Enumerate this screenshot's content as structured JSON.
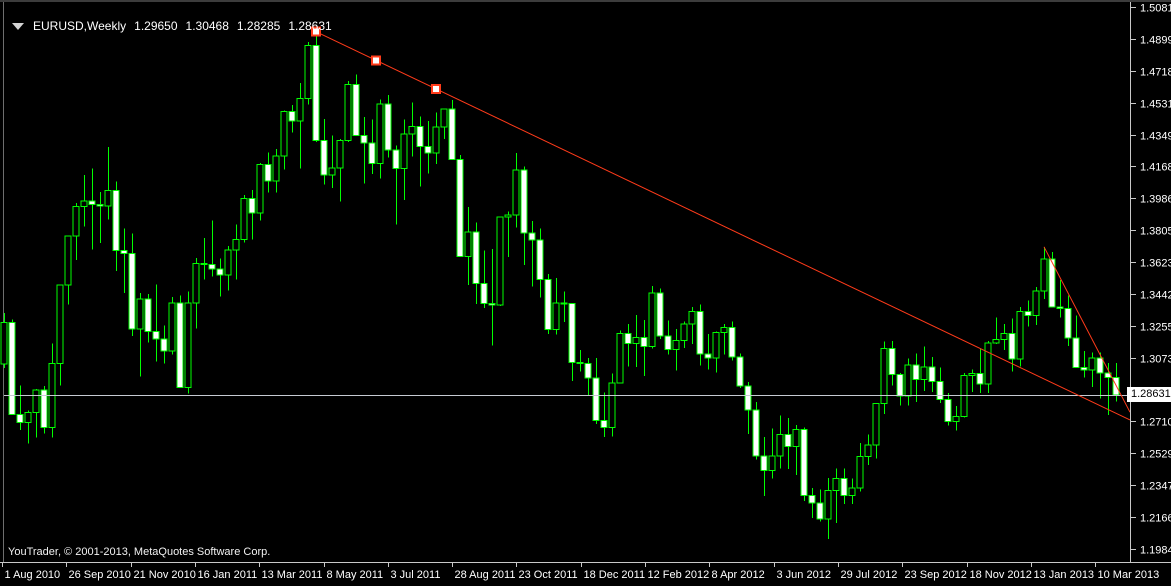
{
  "window": {
    "menu_icon": "chart-menu-arrow",
    "symbol_timeframe": "EURUSD,Weekly",
    "ohlc": {
      "open": "1.29650",
      "high": "1.30468",
      "low": "1.28285",
      "close": "1.28631"
    }
  },
  "footer": {
    "credit": "YouTrader, © 2001-2013, MetaQuotes Software Corp."
  },
  "colors": {
    "background": "#000000",
    "candle_outline": "#00ff00",
    "bull_fill": "#000000",
    "bear_fill": "#ffffff",
    "trendline": "#ff3b1a",
    "anchor_fill": "#ffffff",
    "current_price_line": "#c6cad2",
    "axis_line": "#c8c8c8",
    "axis_text": "#ffffff",
    "price_box_bg": "#ffffff",
    "price_box_text": "#000000"
  },
  "chart_data": {
    "type": "candlestick",
    "title": "EURUSD,Weekly",
    "symbol": "EURUSD",
    "timeframe": "Weekly",
    "grid": false,
    "legend_position": "none",
    "ylim": [
      1.19845,
      1.5081
    ],
    "x_labels": [
      "1 Aug 2010",
      "26 Sep 2010",
      "21 Nov 2010",
      "16 Jan 2011",
      "13 Mar 2011",
      "8 May 2011",
      "3 Jul 2011",
      "28 Aug 2011",
      "23 Oct 2011",
      "18 Dec 2011",
      "12 Feb 2012",
      "8 Apr 2012",
      "3 Jun 2012",
      "29 Jul 2012",
      "23 Sep 2012",
      "18 Nov 2012",
      "13 Jan 2013",
      "10 Mar 2013"
    ],
    "y_labels": [
      "1.50810",
      "1.48995",
      "1.47180",
      "1.45310",
      "1.43495",
      "1.41680",
      "1.39865",
      "1.38050",
      "1.36235",
      "1.34420",
      "1.32550",
      "1.30735",
      "1.28920",
      "1.27105",
      "1.25290",
      "1.23475",
      "1.21660",
      "1.19845"
    ],
    "current_price_label": "1.28631",
    "current_price": 1.28631,
    "horizontal_line_price": 1.28631,
    "first_week": "1 Aug 2010",
    "candles_ohlc": [
      [
        1.3042,
        1.3334,
        1.3018,
        1.3278
      ],
      [
        1.3278,
        1.3296,
        1.2753,
        1.2754
      ],
      [
        1.2754,
        1.2918,
        1.2664,
        1.2708
      ],
      [
        1.2708,
        1.2775,
        1.2588,
        1.2764
      ],
      [
        1.2764,
        1.2898,
        1.2622,
        1.2894
      ],
      [
        1.2894,
        1.2916,
        1.2643,
        1.2679
      ],
      [
        1.2679,
        1.3159,
        1.2621,
        1.3044
      ],
      [
        1.3044,
        1.3497,
        1.292,
        1.3492
      ],
      [
        1.3492,
        1.3774,
        1.338,
        1.3772
      ],
      [
        1.3772,
        1.396,
        1.3637,
        1.394
      ],
      [
        1.394,
        1.4122,
        1.3827,
        1.3972
      ],
      [
        1.3972,
        1.4159,
        1.3696,
        1.3952
      ],
      [
        1.3952,
        1.4023,
        1.3732,
        1.3945
      ],
      [
        1.3945,
        1.4282,
        1.3866,
        1.4033
      ],
      [
        1.4033,
        1.4085,
        1.3574,
        1.3691
      ],
      [
        1.3691,
        1.3815,
        1.3446,
        1.3673
      ],
      [
        1.3673,
        1.3786,
        1.32,
        1.3242
      ],
      [
        1.3242,
        1.3447,
        1.2969,
        1.3413
      ],
      [
        1.3413,
        1.344,
        1.3165,
        1.3228
      ],
      [
        1.3228,
        1.3497,
        1.3055,
        1.3183
      ],
      [
        1.3183,
        1.3262,
        1.3045,
        1.3115
      ],
      [
        1.3115,
        1.3425,
        1.3096,
        1.3391
      ],
      [
        1.3391,
        1.3434,
        1.2907,
        1.2907
      ],
      [
        1.2907,
        1.3457,
        1.2873,
        1.3389
      ],
      [
        1.3389,
        1.3648,
        1.3243,
        1.3617
      ],
      [
        1.3617,
        1.376,
        1.3525,
        1.3611
      ],
      [
        1.3611,
        1.3862,
        1.3542,
        1.3583
      ],
      [
        1.3583,
        1.3643,
        1.3428,
        1.3549
      ],
      [
        1.3549,
        1.3715,
        1.3461,
        1.3694
      ],
      [
        1.3694,
        1.3838,
        1.3525,
        1.3754
      ],
      [
        1.3754,
        1.4007,
        1.3736,
        1.3986
      ],
      [
        1.3986,
        1.4036,
        1.3752,
        1.3903
      ],
      [
        1.3903,
        1.419,
        1.386,
        1.4181
      ],
      [
        1.4181,
        1.4249,
        1.4021,
        1.4088
      ],
      [
        1.4088,
        1.4269,
        1.402,
        1.4229
      ],
      [
        1.4229,
        1.4489,
        1.4153,
        1.4483
      ],
      [
        1.4483,
        1.4521,
        1.4365,
        1.4429
      ],
      [
        1.4429,
        1.4648,
        1.4157,
        1.4557
      ],
      [
        1.4557,
        1.4882,
        1.4524,
        1.486
      ],
      [
        1.486,
        1.494,
        1.4311,
        1.4317
      ],
      [
        1.4317,
        1.4442,
        1.4066,
        1.412
      ],
      [
        1.412,
        1.4346,
        1.4048,
        1.416
      ],
      [
        1.416,
        1.4326,
        1.397,
        1.4319
      ],
      [
        1.4319,
        1.4658,
        1.431,
        1.4637
      ],
      [
        1.4637,
        1.4696,
        1.4428,
        1.4346
      ],
      [
        1.4346,
        1.4452,
        1.4073,
        1.4305
      ],
      [
        1.4305,
        1.4437,
        1.4126,
        1.4187
      ],
      [
        1.4187,
        1.4552,
        1.4101,
        1.4527
      ],
      [
        1.4527,
        1.4578,
        1.422,
        1.4265
      ],
      [
        1.4265,
        1.4289,
        1.3837,
        1.4157
      ],
      [
        1.4157,
        1.4438,
        1.3979,
        1.4356
      ],
      [
        1.4356,
        1.4536,
        1.4227,
        1.4398
      ],
      [
        1.4398,
        1.4454,
        1.4055,
        1.4283
      ],
      [
        1.4283,
        1.4431,
        1.413,
        1.4246
      ],
      [
        1.4246,
        1.4477,
        1.4184,
        1.4396
      ],
      [
        1.4396,
        1.45,
        1.4328,
        1.4499
      ],
      [
        1.4499,
        1.4549,
        1.4207,
        1.4209
      ],
      [
        1.4209,
        1.4236,
        1.3654,
        1.3656
      ],
      [
        1.3656,
        1.3937,
        1.3494,
        1.3795
      ],
      [
        1.3795,
        1.3851,
        1.3384,
        1.35
      ],
      [
        1.35,
        1.369,
        1.3361,
        1.3387
      ],
      [
        1.3387,
        1.3699,
        1.3146,
        1.3379
      ],
      [
        1.3379,
        1.3834,
        1.3372,
        1.388
      ],
      [
        1.388,
        1.3914,
        1.3653,
        1.3894
      ],
      [
        1.3894,
        1.4247,
        1.3822,
        1.415
      ],
      [
        1.415,
        1.417,
        1.3606,
        1.379
      ],
      [
        1.379,
        1.3859,
        1.3483,
        1.375
      ],
      [
        1.375,
        1.3815,
        1.3421,
        1.3524
      ],
      [
        1.3524,
        1.3556,
        1.3212,
        1.3239
      ],
      [
        1.3239,
        1.3533,
        1.3211,
        1.3391
      ],
      [
        1.3391,
        1.3457,
        1.3281,
        1.3386
      ],
      [
        1.3386,
        1.3388,
        1.2945,
        1.3049
      ],
      [
        1.3049,
        1.3121,
        1.2999,
        1.3043
      ],
      [
        1.3043,
        1.3077,
        1.2858,
        1.2961
      ],
      [
        1.2961,
        1.3077,
        1.2698,
        1.2718
      ],
      [
        1.2718,
        1.2879,
        1.2624,
        1.268
      ],
      [
        1.268,
        1.2986,
        1.2626,
        1.2933
      ],
      [
        1.2933,
        1.3234,
        1.293,
        1.3216
      ],
      [
        1.3216,
        1.327,
        1.3026,
        1.3158
      ],
      [
        1.3158,
        1.3322,
        1.3025,
        1.3193
      ],
      [
        1.3193,
        1.3293,
        1.2974,
        1.3141
      ],
      [
        1.3141,
        1.3486,
        1.3129,
        1.3448
      ],
      [
        1.3448,
        1.3473,
        1.3185,
        1.32
      ],
      [
        1.32,
        1.329,
        1.3095,
        1.3123
      ],
      [
        1.3123,
        1.324,
        1.3003,
        1.3175
      ],
      [
        1.3175,
        1.3285,
        1.3133,
        1.327
      ],
      [
        1.327,
        1.3368,
        1.3157,
        1.334
      ],
      [
        1.334,
        1.338,
        1.3034,
        1.3098
      ],
      [
        1.3098,
        1.3213,
        1.301,
        1.3076
      ],
      [
        1.3076,
        1.3226,
        1.2994,
        1.3221
      ],
      [
        1.3221,
        1.327,
        1.3095,
        1.325
      ],
      [
        1.325,
        1.3283,
        1.3061,
        1.3082
      ],
      [
        1.3082,
        1.3102,
        1.2904,
        1.2917
      ],
      [
        1.2917,
        1.294,
        1.2642,
        1.278
      ],
      [
        1.278,
        1.2825,
        1.2495,
        1.2517
      ],
      [
        1.2517,
        1.2625,
        1.2288,
        1.2434
      ],
      [
        1.2434,
        1.2672,
        1.2386,
        1.2516
      ],
      [
        1.2516,
        1.2748,
        1.2443,
        1.2638
      ],
      [
        1.2638,
        1.2733,
        1.2441,
        1.257
      ],
      [
        1.257,
        1.2693,
        1.2407,
        1.2667
      ],
      [
        1.2667,
        1.2678,
        1.226,
        1.2291
      ],
      [
        1.2291,
        1.2333,
        1.2162,
        1.2248
      ],
      [
        1.2248,
        1.2324,
        1.2143,
        1.2157
      ],
      [
        1.2157,
        1.239,
        1.2042,
        1.232
      ],
      [
        1.232,
        1.2444,
        1.2133,
        1.2386
      ],
      [
        1.2386,
        1.2444,
        1.2241,
        1.229
      ],
      [
        1.229,
        1.2386,
        1.2241,
        1.2333
      ],
      [
        1.2333,
        1.259,
        1.2313,
        1.2512
      ],
      [
        1.2512,
        1.2638,
        1.2465,
        1.2578
      ],
      [
        1.2578,
        1.2815,
        1.2501,
        1.2815
      ],
      [
        1.2815,
        1.3169,
        1.2755,
        1.313
      ],
      [
        1.313,
        1.3172,
        1.2919,
        1.2982
      ],
      [
        1.2982,
        1.2991,
        1.2803,
        1.286
      ],
      [
        1.286,
        1.3072,
        1.2804,
        1.3035
      ],
      [
        1.3035,
        1.31,
        1.2825,
        1.2953
      ],
      [
        1.2953,
        1.314,
        1.2887,
        1.3023
      ],
      [
        1.3023,
        1.3081,
        1.2882,
        1.2941
      ],
      [
        1.2941,
        1.3021,
        1.282,
        1.2838
      ],
      [
        1.2838,
        1.2876,
        1.269,
        1.2714
      ],
      [
        1.2714,
        1.2801,
        1.2661,
        1.2741
      ],
      [
        1.2741,
        1.2991,
        1.2736,
        1.2975
      ],
      [
        1.2975,
        1.301,
        1.2882,
        1.2986
      ],
      [
        1.2986,
        1.3127,
        1.2876,
        1.2926
      ],
      [
        1.2926,
        1.3173,
        1.2877,
        1.316
      ],
      [
        1.316,
        1.3308,
        1.3156,
        1.3182
      ],
      [
        1.3182,
        1.327,
        1.312,
        1.3217
      ],
      [
        1.3217,
        1.33,
        1.2998,
        1.3069
      ],
      [
        1.3069,
        1.3366,
        1.3027,
        1.3342
      ],
      [
        1.3342,
        1.3404,
        1.3255,
        1.3318
      ],
      [
        1.3318,
        1.348,
        1.3264,
        1.3459
      ],
      [
        1.3459,
        1.3711,
        1.3413,
        1.364
      ],
      [
        1.364,
        1.368,
        1.3458,
        1.3366
      ],
      [
        1.3366,
        1.352,
        1.3306,
        1.3358
      ],
      [
        1.3358,
        1.3434,
        1.3144,
        1.319
      ],
      [
        1.319,
        1.3319,
        1.3018,
        1.3022
      ],
      [
        1.3022,
        1.3115,
        1.2965,
        1.3006
      ],
      [
        1.3006,
        1.3108,
        1.2911,
        1.3075
      ],
      [
        1.3075,
        1.3106,
        1.2843,
        1.299
      ],
      [
        1.299,
        1.3048,
        1.275,
        1.2965
      ],
      [
        1.2965,
        1.30468,
        1.28285,
        1.28631
      ]
    ],
    "trendlines": [
      {
        "name": "long-downtrend-line",
        "selected": true,
        "ray": true,
        "points": [
          {
            "week": 39,
            "price": 1.494
          },
          {
            "week": 54,
            "price": 1.4613
          }
        ]
      },
      {
        "name": "short-downtrend-line",
        "selected": false,
        "ray": true,
        "points": [
          {
            "week": 130,
            "price": 1.3711
          },
          {
            "week": 139,
            "price": 1.292
          }
        ]
      }
    ]
  }
}
